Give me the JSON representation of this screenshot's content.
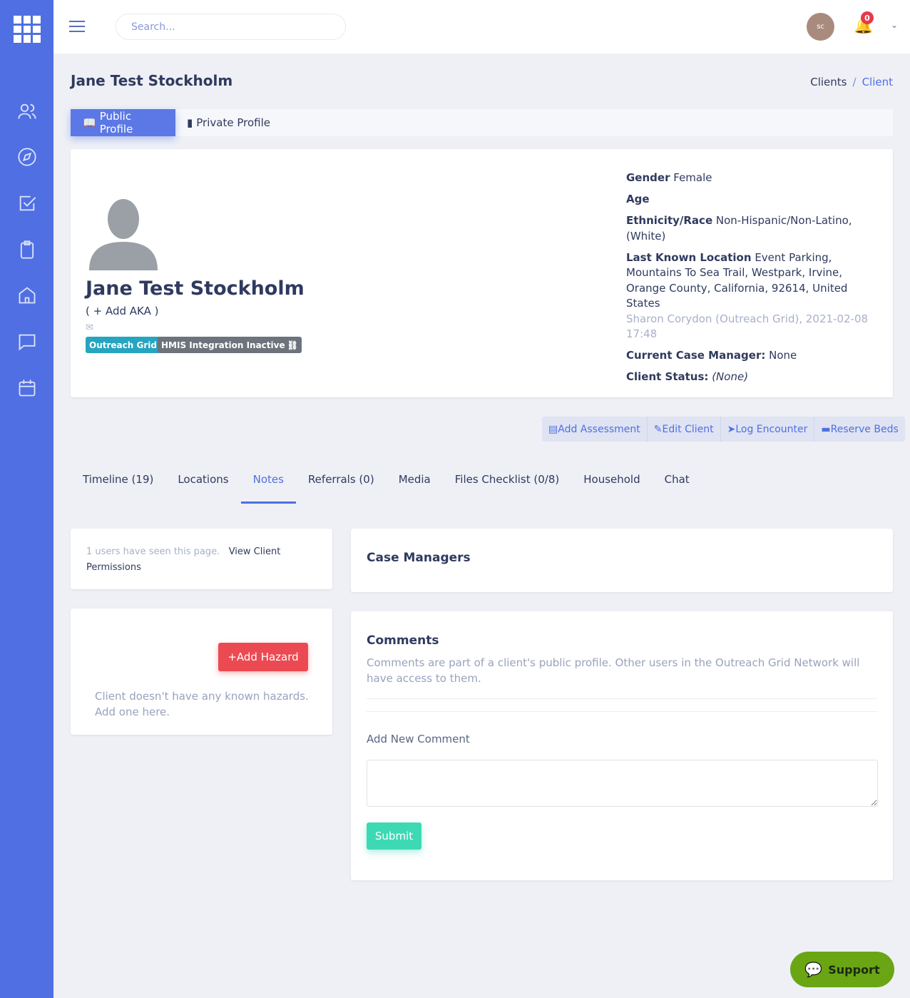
{
  "search": {
    "placeholder": "Search..."
  },
  "user": {
    "initials": "sc",
    "notifications": "0"
  },
  "page": {
    "title": "Jane Test Stockholm"
  },
  "breadcrumb": [
    "Clients",
    "Client"
  ],
  "profile_tabs": [
    "Public Profile",
    "Private Profile"
  ],
  "client": {
    "name": "Jane Test Stockholm",
    "aka": "( + Add AKA )",
    "tags": [
      "Outreach Grid",
      "HMIS Integration Inactive"
    ],
    "fields": [
      {
        "label": "Gender",
        "value": "Female"
      },
      {
        "label": "Age",
        "value": ""
      },
      {
        "label": "Ethnicity/Race",
        "value": "Non-Hispanic/Non-Latino, (White)"
      },
      {
        "label": "Last Known Location",
        "value": "Event Parking, Mountains To Sea Trail, Westpark, Irvine, Orange County, California, 92614, United States",
        "note": "Sharon Corydon (Outreach Grid), 2021-02-08 17:48"
      },
      {
        "label": "Current Case Manager:",
        "value": "None"
      },
      {
        "label": "Client Status:",
        "value": "(None)"
      }
    ]
  },
  "actions": [
    "Add Assessment",
    "Edit Client",
    "Log Encounter",
    "Reserve Beds"
  ],
  "tabs": [
    "Timeline (19)",
    "Locations",
    "Notes",
    "Referrals (0)",
    "Media",
    "Files Checklist (0/8)",
    "Household",
    "Chat"
  ],
  "seen": {
    "text": "1 users have seen this page.",
    "link": "View Client Permissions"
  },
  "hazards": {
    "button": "+Add Hazard",
    "empty": "Client doesn't have any known hazards. Add one here."
  },
  "case_managers": {
    "title": "Case Managers"
  },
  "comments": {
    "title": "Comments",
    "desc": "Comments are part of a client's public profile. Other users in the Outreach Grid Network will have access to them.",
    "label": "Add New Comment",
    "submit": "Submit"
  },
  "support": "Support",
  "colors": {
    "sidebar": "#4f6fe3",
    "accent": "#4f6fe3",
    "danger": "#ec4a52",
    "success": "#3dd9b4",
    "support": "#6aa514"
  }
}
